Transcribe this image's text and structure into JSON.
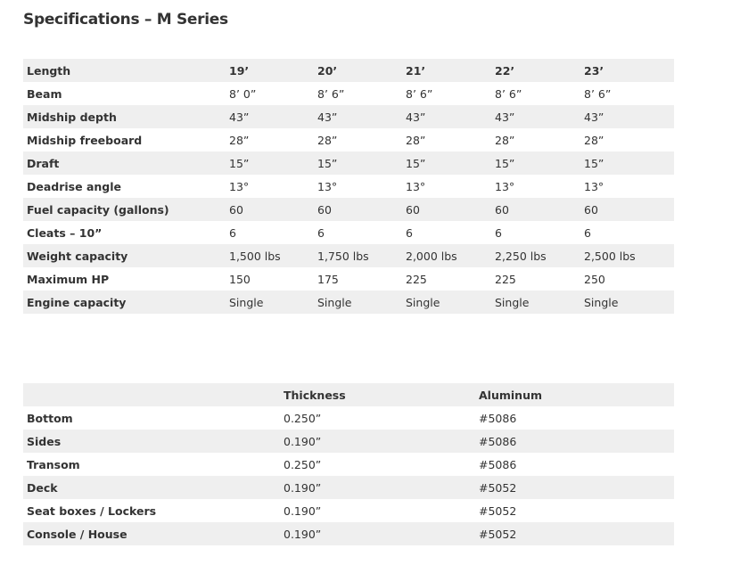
{
  "title": "Specifications – M Series",
  "specs": {
    "header": [
      "Length",
      "19’",
      "20’",
      "21’",
      "22’",
      "23’"
    ],
    "rows": [
      [
        "Beam",
        "8’ 0”",
        "8’ 6”",
        "8’ 6”",
        "8’ 6”",
        "8’ 6”"
      ],
      [
        "Midship depth",
        "43”",
        "43”",
        "43”",
        "43”",
        "43”"
      ],
      [
        "Midship freeboard",
        "28”",
        "28”",
        "28”",
        "28”",
        "28”"
      ],
      [
        "Draft",
        "15”",
        "15”",
        "15”",
        "15”",
        "15”"
      ],
      [
        "Deadrise angle",
        "13°",
        "13°",
        "13°",
        "13°",
        "13°"
      ],
      [
        "Fuel capacity (gallons)",
        "60",
        "60",
        "60",
        "60",
        "60"
      ],
      [
        "Cleats – 10”",
        "6",
        "6",
        "6",
        "6",
        "6"
      ],
      [
        "Weight capacity",
        "1,500 lbs",
        "1,750 lbs",
        "2,000 lbs",
        "2,250 lbs",
        "2,500 lbs"
      ],
      [
        "Maximum HP",
        "150",
        "175",
        "225",
        "225",
        "250"
      ],
      [
        "Engine capacity",
        "Single",
        "Single",
        "Single",
        "Single",
        "Single"
      ]
    ]
  },
  "materials": {
    "header": [
      "",
      "Thickness",
      "Aluminum"
    ],
    "rows": [
      [
        "Bottom",
        "0.250”",
        "#5086"
      ],
      [
        "Sides",
        "0.190”",
        "#5086"
      ],
      [
        "Transom",
        "0.250”",
        "#5086"
      ],
      [
        "Deck",
        "0.190”",
        "#5052"
      ],
      [
        "Seat boxes / Lockers",
        "0.190”",
        "#5052"
      ],
      [
        "Console / House",
        "0.190”",
        "#5052"
      ]
    ]
  }
}
